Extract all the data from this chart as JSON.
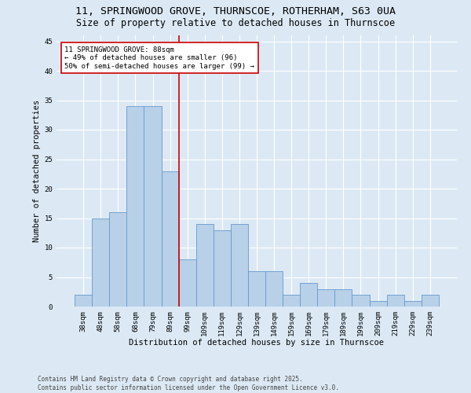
{
  "title_line1": "11, SPRINGWOOD GROVE, THURNSCOE, ROTHERHAM, S63 0UA",
  "title_line2": "Size of property relative to detached houses in Thurnscoe",
  "xlabel": "Distribution of detached houses by size in Thurnscoe",
  "ylabel": "Number of detached properties",
  "categories": [
    "38sqm",
    "48sqm",
    "58sqm",
    "68sqm",
    "79sqm",
    "89sqm",
    "99sqm",
    "109sqm",
    "119sqm",
    "129sqm",
    "139sqm",
    "149sqm",
    "159sqm",
    "169sqm",
    "179sqm",
    "189sqm",
    "199sqm",
    "209sqm",
    "219sqm",
    "229sqm",
    "239sqm"
  ],
  "values": [
    2,
    15,
    16,
    34,
    34,
    23,
    8,
    14,
    13,
    14,
    6,
    6,
    2,
    4,
    3,
    3,
    2,
    1,
    2,
    1,
    2
  ],
  "bar_color": "#b8d0e8",
  "bar_edge_color": "#6699cc",
  "background_color": "#dce9f5",
  "grid_color": "#ffffff",
  "annotation_line1": "11 SPRINGWOOD GROVE: 88sqm",
  "annotation_line2": "← 49% of detached houses are smaller (96)",
  "annotation_line3": "50% of semi-detached houses are larger (99) →",
  "annotation_box_color": "#ffffff",
  "annotation_box_edge": "#cc0000",
  "vline_color": "#cc0000",
  "vline_x_idx": 5,
  "ylim": [
    0,
    46
  ],
  "yticks": [
    0,
    5,
    10,
    15,
    20,
    25,
    30,
    35,
    40,
    45
  ],
  "footer_line1": "Contains HM Land Registry data © Crown copyright and database right 2025.",
  "footer_line2": "Contains public sector information licensed under the Open Government Licence v3.0.",
  "title_fontsize": 9.5,
  "subtitle_fontsize": 8.5,
  "axis_label_fontsize": 7.5,
  "tick_fontsize": 6.5,
  "annotation_fontsize": 6.5,
  "footer_fontsize": 5.5
}
